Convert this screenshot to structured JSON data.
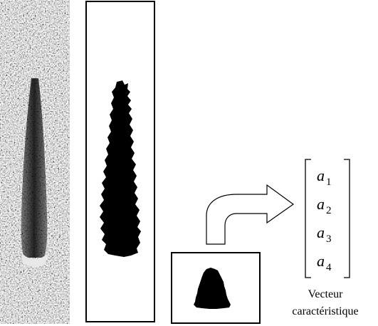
{
  "vector": {
    "entries": [
      {
        "base": "a",
        "sub": "1"
      },
      {
        "base": "a",
        "sub": "2"
      },
      {
        "base": "a",
        "sub": "3"
      },
      {
        "base": "a",
        "sub": "4"
      }
    ]
  },
  "caption": {
    "line1": "Vecteur",
    "line2": "caractéristique"
  }
}
